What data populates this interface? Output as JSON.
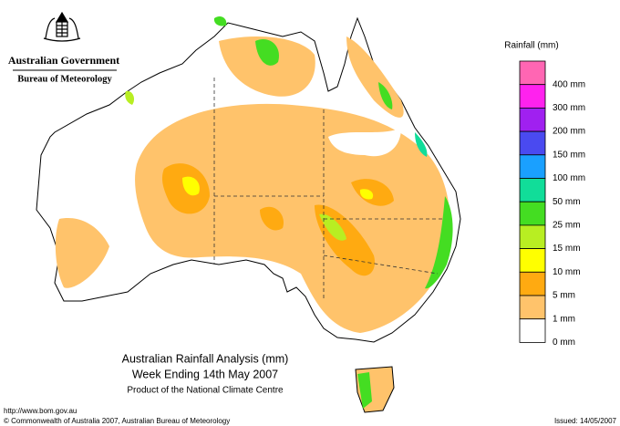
{
  "header": {
    "government": "Australian Government",
    "bureau": "Bureau of Meteorology"
  },
  "legend": {
    "title": "Rainfall (mm)",
    "items": [
      {
        "label": "400 mm",
        "color": "#ff66b3"
      },
      {
        "label": "300 mm",
        "color": "#ff22ee"
      },
      {
        "label": "200 mm",
        "color": "#a020f0"
      },
      {
        "label": "150 mm",
        "color": "#4a4af0"
      },
      {
        "label": "100 mm",
        "color": "#1aa0ff"
      },
      {
        "label": "50 mm",
        "color": "#11dd99"
      },
      {
        "label": "25 mm",
        "color": "#44dd22"
      },
      {
        "label": "15 mm",
        "color": "#b8ee22"
      },
      {
        "label": "10 mm",
        "color": "#ffff00"
      },
      {
        "label": "5 mm",
        "color": "#ffaa11"
      },
      {
        "label": "1 mm",
        "color": "#ffc36b"
      },
      {
        "label": "0 mm",
        "color": "#ffffff"
      }
    ]
  },
  "caption": {
    "title": "Australian Rainfall Analysis (mm)",
    "subtitle": "Week Ending 14th May 2007",
    "credit": "Product of the National Climate Centre"
  },
  "footer": {
    "url": "http://www.bom.gov.au",
    "copyright": "© Commonwealth of Australia 2007, Australian Bureau of Meteorology",
    "issued": "Issued: 14/05/2007"
  }
}
